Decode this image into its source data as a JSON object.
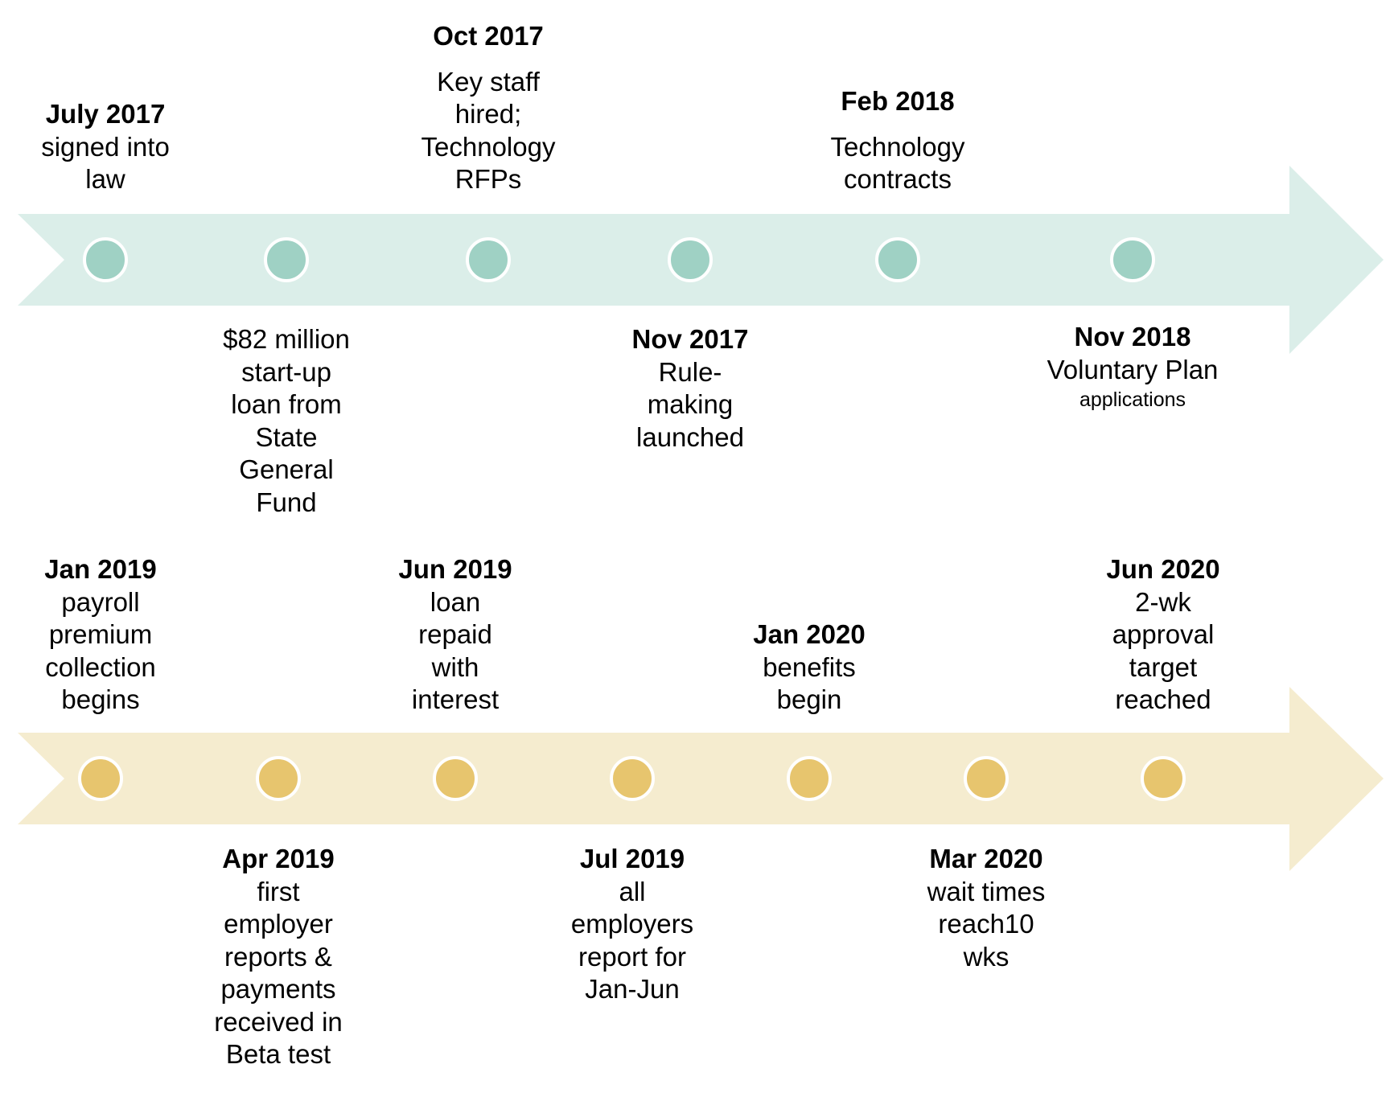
{
  "colors": {
    "band_2017_2018": "#dbeee9",
    "dot_2017_2018": "#9fd1c4",
    "band_2019_2020": "#f5eccf",
    "dot_2019_2020": "#e7c56e"
  },
  "timeline_2017_2018": [
    {
      "id": "jul2017",
      "date": "July 2017",
      "lines": [
        "signed into",
        "law"
      ]
    },
    {
      "id": "loan",
      "date": "",
      "lines": [
        "$82 million",
        "start-up",
        "loan from",
        "State",
        "General",
        "Fund"
      ]
    },
    {
      "id": "oct2017",
      "date": "Oct 2017",
      "lines": [
        "Key staff",
        "hired;",
        "Technology",
        "RFPs"
      ]
    },
    {
      "id": "nov2017",
      "date": "Nov 2017",
      "lines": [
        "Rule-",
        "making",
        "launched"
      ]
    },
    {
      "id": "feb2018",
      "date": "Feb 2018",
      "lines": [
        "Technology",
        "contracts"
      ]
    },
    {
      "id": "nov2018",
      "date": "Nov 2018",
      "lines": [
        "Voluntary Plan"
      ],
      "small": "applications"
    }
  ],
  "timeline_2019_2020": [
    {
      "id": "jan2019",
      "date": "Jan 2019",
      "lines": [
        "payroll",
        "premium",
        "collection",
        "begins"
      ]
    },
    {
      "id": "apr2019",
      "date": "Apr 2019",
      "lines": [
        "first",
        "employer",
        "reports &",
        "payments",
        "received in",
        "Beta test"
      ]
    },
    {
      "id": "jun2019",
      "date": "Jun 2019",
      "lines": [
        "loan",
        "repaid",
        "with",
        "interest"
      ]
    },
    {
      "id": "jul2019",
      "date": "Jul 2019",
      "lines": [
        "all",
        "employers",
        "report for",
        "Jan-Jun"
      ]
    },
    {
      "id": "jan2020",
      "date": "Jan 2020",
      "lines": [
        "benefits",
        "begin"
      ]
    },
    {
      "id": "mar2020",
      "date": "Mar 2020",
      "lines": [
        "wait times",
        "reach10",
        "wks"
      ]
    },
    {
      "id": "jun2020",
      "date": "Jun 2020",
      "lines": [
        "2-wk",
        "approval",
        "target",
        "reached"
      ]
    }
  ]
}
